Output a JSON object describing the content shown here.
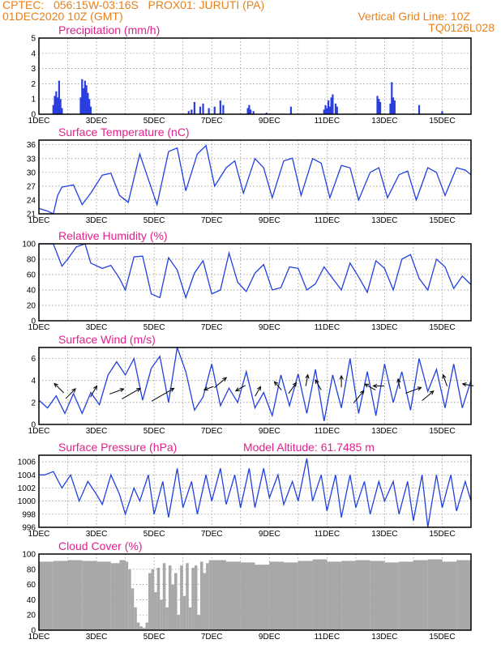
{
  "header": {
    "line1_left": "CPTEC:   056:15W-03:16S   PROX01: JURUTI (PA)",
    "line2_left": "01DEC2020 10Z (GMT)",
    "line2_right": "Vertical Grid Line: 10Z",
    "line3_right": "TQ0126L028"
  },
  "colors": {
    "header": "#e8801a",
    "title": "#e0208c",
    "series": "#2040e0",
    "bars": "#2a3ee0",
    "cloud": "#a8a8a8"
  },
  "x_day_ticks": [
    "1DEC",
    "3DEC",
    "5DEC",
    "7DEC",
    "9DEC",
    "11DEC",
    "13DEC",
    "15DEC"
  ],
  "chart_data": [
    {
      "type": "bar",
      "title": "Precipitation (mm/h)",
      "ylim": [
        0,
        5
      ],
      "yticks": [
        0,
        1,
        2,
        3,
        4,
        5
      ],
      "x_unit": "days since 1DEC 00Z",
      "xlim": [
        0,
        15
      ],
      "x": [
        0.5,
        0.55,
        0.6,
        0.65,
        0.7,
        0.75,
        0.8,
        1.45,
        1.5,
        1.55,
        1.6,
        1.65,
        1.7,
        1.75,
        1.8,
        5.2,
        5.3,
        5.4,
        5.6,
        5.7,
        5.9,
        6.1,
        6.3,
        6.4,
        7.25,
        7.3,
        7.35,
        7.45,
        7.9,
        8.75,
        9.9,
        9.95,
        10.0,
        10.05,
        10.1,
        10.15,
        10.2,
        10.3,
        10.35,
        11.75,
        11.8,
        11.85,
        12.2,
        12.25,
        12.3,
        12.35,
        13.2,
        14.0
      ],
      "values": [
        0.6,
        1.2,
        1.5,
        1.1,
        2.2,
        1.0,
        0.4,
        1.1,
        2.3,
        1.7,
        2.2,
        1.9,
        1.4,
        1.0,
        0.5,
        0.2,
        0.3,
        0.8,
        0.5,
        0.7,
        0.4,
        0.5,
        0.9,
        0.6,
        0.4,
        0.6,
        0.3,
        0.2,
        0.1,
        0.5,
        0.3,
        0.6,
        0.4,
        0.9,
        0.5,
        1.1,
        1.3,
        0.7,
        0.5,
        1.2,
        1.0,
        0.8,
        0.7,
        2.1,
        1.1,
        0.9,
        0.6,
        0.2
      ]
    },
    {
      "type": "line",
      "title": "Surface Temperature (nC)",
      "ylim": [
        21,
        37
      ],
      "yticks": [
        21,
        24,
        27,
        30,
        33,
        36
      ],
      "x_unit": "days since 1DEC 00Z",
      "xlim": [
        0,
        15
      ],
      "x": [
        0,
        0.3,
        0.5,
        0.65,
        0.8,
        1.2,
        1.5,
        1.8,
        2.2,
        2.5,
        2.8,
        3.1,
        3.5,
        3.8,
        4.1,
        4.5,
        4.8,
        5.1,
        5.5,
        5.8,
        6.1,
        6.5,
        6.8,
        7.1,
        7.5,
        7.8,
        8.1,
        8.5,
        8.8,
        9.1,
        9.5,
        9.8,
        10.1,
        10.5,
        10.8,
        11.1,
        11.5,
        11.8,
        12.1,
        12.5,
        12.8,
        13.1,
        13.5,
        13.8,
        14.1,
        14.5,
        14.8,
        15
      ],
      "values": [
        22.2,
        21.6,
        21.0,
        25.0,
        26.8,
        27.3,
        23.0,
        25.5,
        29.4,
        29.8,
        25.0,
        23.5,
        34.0,
        28.5,
        23.0,
        34.5,
        35.3,
        26.0,
        34.0,
        35.8,
        27.0,
        31.0,
        32.5,
        25.5,
        33.0,
        31.0,
        24.5,
        32.5,
        33.1,
        25.0,
        33.0,
        32.0,
        24.5,
        31.5,
        31.0,
        24.0,
        30.0,
        31.0,
        24.5,
        29.5,
        30.3,
        24.0,
        31.0,
        30.0,
        25.0,
        31.0,
        30.5,
        29.5
      ]
    },
    {
      "type": "line",
      "title": "Relative Humidity (%)",
      "ylim": [
        0,
        100
      ],
      "yticks": [
        0,
        20,
        40,
        60,
        80,
        100
      ],
      "x_unit": "days since 1DEC 00Z",
      "xlim": [
        0,
        15
      ],
      "x": [
        0,
        0.3,
        0.5,
        0.8,
        1.0,
        1.3,
        1.6,
        1.8,
        2.2,
        2.5,
        2.8,
        3.0,
        3.3,
        3.6,
        3.9,
        4.2,
        4.5,
        4.8,
        5.1,
        5.4,
        5.7,
        6.0,
        6.3,
        6.6,
        6.9,
        7.2,
        7.5,
        7.8,
        8.1,
        8.4,
        8.7,
        9.0,
        9.3,
        9.6,
        9.9,
        10.2,
        10.5,
        10.8,
        11.1,
        11.4,
        11.7,
        12.0,
        12.3,
        12.6,
        12.9,
        13.2,
        13.5,
        13.8,
        14.1,
        14.4,
        14.7,
        15
      ],
      "values": [
        100,
        100,
        100,
        71,
        80,
        96,
        100,
        75,
        68,
        72,
        55,
        40,
        83,
        84,
        35,
        30,
        82,
        66,
        30,
        62,
        78,
        35,
        40,
        88,
        50,
        38,
        62,
        73,
        40,
        43,
        70,
        68,
        40,
        48,
        70,
        55,
        40,
        75,
        57,
        37,
        78,
        68,
        40,
        80,
        86,
        55,
        40,
        80,
        70,
        42,
        58,
        47
      ]
    },
    {
      "type": "line",
      "title": "Surface Wind (m/s)",
      "ylim": [
        0,
        7
      ],
      "yticks": [
        0,
        2,
        4,
        6
      ],
      "x_unit": "days since 1DEC 00Z",
      "xlim": [
        0,
        15
      ],
      "x": [
        0,
        0.3,
        0.6,
        0.9,
        1.2,
        1.5,
        1.8,
        2.1,
        2.4,
        2.7,
        3.0,
        3.3,
        3.6,
        3.9,
        4.2,
        4.5,
        4.8,
        5.1,
        5.4,
        5.7,
        6.0,
        6.3,
        6.6,
        6.9,
        7.2,
        7.5,
        7.8,
        8.1,
        8.4,
        8.7,
        9.0,
        9.3,
        9.6,
        9.9,
        10.2,
        10.5,
        10.8,
        11.1,
        11.4,
        11.7,
        12.0,
        12.3,
        12.6,
        12.9,
        13.2,
        13.5,
        13.8,
        14.1,
        14.4,
        14.7,
        15
      ],
      "values": [
        2.2,
        1.5,
        2.6,
        1.0,
        2.8,
        1.0,
        2.9,
        1.8,
        4.5,
        5.7,
        4.5,
        6.0,
        2.2,
        5.1,
        6.2,
        2.0,
        7.0,
        4.8,
        1.3,
        2.5,
        5.5,
        1.7,
        3.3,
        2.0,
        4.8,
        1.5,
        2.9,
        0.8,
        4.5,
        1.7,
        4.6,
        1.0,
        5.0,
        0.3,
        4.5,
        1.5,
        6.0,
        1.0,
        4.8,
        0.8,
        5.5,
        2.0,
        4.8,
        1.3,
        6.0,
        3.0,
        5.0,
        1.5,
        5.5,
        1.5,
        4.0
      ],
      "arrows": [
        {
          "x": 0.7,
          "y": 3.3,
          "dir_deg": 135,
          "speed": 1.2
        },
        {
          "x": 1.1,
          "y": 2.8,
          "dir_deg": 45,
          "speed": 1.3
        },
        {
          "x": 1.9,
          "y": 3.0,
          "dir_deg": 60,
          "speed": 1.1
        },
        {
          "x": 2.7,
          "y": 3.0,
          "dir_deg": 20,
          "speed": 1.5
        },
        {
          "x": 3.2,
          "y": 2.8,
          "dir_deg": 30,
          "speed": 2.6
        },
        {
          "x": 4.3,
          "y": 2.7,
          "dir_deg": 30,
          "speed": 3.4
        },
        {
          "x": 5.9,
          "y": 3.3,
          "dir_deg": 200,
          "speed": 0.6
        },
        {
          "x": 6.3,
          "y": 3.8,
          "dir_deg": 40,
          "speed": 1.6
        },
        {
          "x": 7.0,
          "y": 3.3,
          "dir_deg": 210,
          "speed": 0.8
        },
        {
          "x": 7.6,
          "y": 3.0,
          "dir_deg": 60,
          "speed": 0.8
        },
        {
          "x": 8.3,
          "y": 3.5,
          "dir_deg": 130,
          "speed": 0.8
        },
        {
          "x": 8.8,
          "y": 3.3,
          "dir_deg": 55,
          "speed": 1.2
        },
        {
          "x": 9.3,
          "y": 4.0,
          "dir_deg": 80,
          "speed": 0.9
        },
        {
          "x": 9.7,
          "y": 3.6,
          "dir_deg": 120,
          "speed": 0.9
        },
        {
          "x": 10.5,
          "y": 3.9,
          "dir_deg": 90,
          "speed": 0.9
        },
        {
          "x": 11.1,
          "y": 2.5,
          "dir_deg": 50,
          "speed": 1.7
        },
        {
          "x": 11.5,
          "y": 3.4,
          "dir_deg": 150,
          "speed": 1.0
        },
        {
          "x": 11.8,
          "y": 3.5,
          "dir_deg": 180,
          "speed": 0.8
        },
        {
          "x": 12.5,
          "y": 3.7,
          "dir_deg": 100,
          "speed": 0.6
        },
        {
          "x": 13.0,
          "y": 3.1,
          "dir_deg": 20,
          "speed": 1.8
        },
        {
          "x": 13.5,
          "y": 2.6,
          "dir_deg": 40,
          "speed": 1.5
        },
        {
          "x": 14.1,
          "y": 4.0,
          "dir_deg": 110,
          "speed": 1.0
        },
        {
          "x": 14.9,
          "y": 3.6,
          "dir_deg": 170,
          "speed": 0.8
        }
      ]
    },
    {
      "type": "line",
      "title": "Surface Pressure (hPa)",
      "annotation": "Model Altitude: 61.7485 m",
      "ylim": [
        996,
        1007
      ],
      "yticks": [
        996,
        998,
        1000,
        1002,
        1004,
        1006
      ],
      "x_unit": "days since 1DEC 00Z",
      "xlim": [
        0,
        15
      ],
      "x": [
        0,
        0.2,
        0.5,
        0.8,
        1.1,
        1.4,
        1.7,
        2.0,
        2.2,
        2.5,
        2.8,
        3.0,
        3.3,
        3.5,
        3.8,
        4.0,
        4.3,
        4.5,
        4.8,
        5.0,
        5.3,
        5.5,
        5.8,
        6.0,
        6.3,
        6.5,
        6.8,
        7.0,
        7.3,
        7.5,
        7.8,
        8.0,
        8.3,
        8.5,
        8.8,
        9.0,
        9.3,
        9.5,
        9.8,
        10.0,
        10.3,
        10.5,
        10.8,
        11.0,
        11.3,
        11.5,
        11.8,
        12.0,
        12.3,
        12.5,
        12.8,
        13.0,
        13.3,
        13.5,
        13.8,
        14.0,
        14.3,
        14.5,
        14.8,
        15
      ],
      "values": [
        1004,
        1004,
        1004.5,
        1002,
        1004,
        1000,
        1003,
        1001,
        999.5,
        1004,
        1001,
        998,
        1002,
        1000,
        1004,
        998,
        1003,
        997.5,
        1005,
        999,
        1003,
        998,
        1004,
        1000,
        1005,
        999.5,
        1004,
        999,
        1005,
        999,
        1005,
        1000.5,
        1004,
        999.5,
        1003,
        1000,
        1006.5,
        1000,
        1004,
        998.5,
        1004,
        997.5,
        1004,
        999,
        1003,
        998,
        1003,
        1000,
        1003,
        998,
        1003,
        997,
        1004,
        996,
        1004,
        999,
        1004,
        998.5,
        1003,
        1000
      ]
    },
    {
      "type": "bar",
      "title": "Cloud Cover (%)",
      "ylim": [
        0,
        100
      ],
      "yticks": [
        0,
        20,
        40,
        60,
        80,
        100
      ],
      "x_unit": "days since 1DEC 00Z",
      "xlim": [
        0,
        15
      ],
      "x": [
        0,
        0.5,
        1,
        1.5,
        2,
        2.5,
        2.8,
        3.0,
        3.1,
        3.2,
        3.3,
        3.4,
        3.5,
        3.6,
        3.7,
        3.8,
        3.9,
        4.0,
        4.1,
        4.2,
        4.3,
        4.4,
        4.5,
        4.6,
        4.7,
        4.8,
        4.9,
        5.0,
        5.1,
        5.2,
        5.3,
        5.4,
        5.5,
        5.6,
        5.7,
        5.8,
        5.9,
        6.0,
        6.5,
        7,
        7.5,
        8,
        8.5,
        9,
        9.5,
        10,
        10.5,
        11,
        11.5,
        12,
        12.5,
        13,
        13.5,
        14,
        14.5,
        15
      ],
      "values": [
        90,
        91,
        92,
        91,
        90,
        88,
        92,
        90,
        80,
        55,
        30,
        10,
        5,
        3,
        10,
        75,
        80,
        50,
        82,
        40,
        88,
        30,
        85,
        60,
        75,
        20,
        85,
        45,
        88,
        30,
        82,
        85,
        20,
        90,
        75,
        88,
        92,
        92,
        90,
        89,
        86,
        90,
        89,
        91,
        93,
        90,
        91,
        92,
        91,
        89,
        90,
        92,
        93,
        90,
        92,
        91
      ]
    }
  ]
}
